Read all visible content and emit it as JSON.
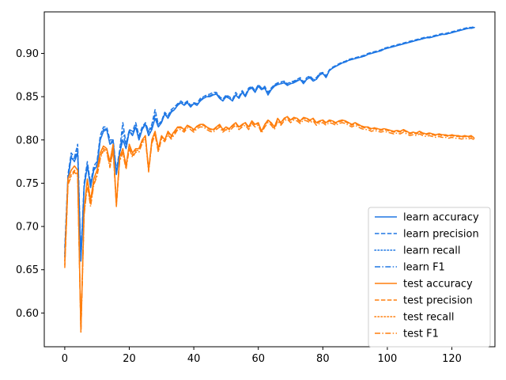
{
  "chart_data": {
    "type": "line",
    "title": "",
    "xlabel": "",
    "ylabel": "",
    "xlim": [
      -6.35,
      133.35
    ],
    "ylim": [
      0.561,
      0.948
    ],
    "xticks": [
      0,
      20,
      40,
      60,
      80,
      100,
      120
    ],
    "yticks": [
      0.6,
      0.65,
      0.7,
      0.75,
      0.8,
      0.85,
      0.9
    ],
    "ytick_labels": [
      "0.60",
      "0.65",
      "0.70",
      "0.75",
      "0.80",
      "0.85",
      "0.90"
    ],
    "grid": false,
    "legend": {
      "position": "lower-right"
    },
    "colors": {
      "learn": "#1f77e4",
      "test": "#ff7f0e"
    },
    "x_step": 1,
    "series": [
      {
        "name": "learn accuracy",
        "color": "#1f77e4",
        "style": "solid",
        "values": [
          0.665,
          0.755,
          0.78,
          0.775,
          0.785,
          0.66,
          0.745,
          0.77,
          0.745,
          0.765,
          0.77,
          0.8,
          0.81,
          0.812,
          0.795,
          0.798,
          0.76,
          0.785,
          0.8,
          0.79,
          0.81,
          0.805,
          0.815,
          0.8,
          0.812,
          0.818,
          0.805,
          0.812,
          0.825,
          0.815,
          0.82,
          0.83,
          0.825,
          0.832,
          0.835,
          0.84,
          0.843,
          0.84,
          0.843,
          0.838,
          0.842,
          0.84,
          0.845,
          0.848,
          0.85,
          0.85,
          0.852,
          0.853,
          0.848,
          0.845,
          0.85,
          0.848,
          0.845,
          0.852,
          0.848,
          0.855,
          0.85,
          0.858,
          0.86,
          0.855,
          0.862,
          0.858,
          0.86,
          0.852,
          0.858,
          0.862,
          0.864,
          0.865,
          0.866,
          0.863,
          0.865,
          0.866,
          0.868,
          0.87,
          0.865,
          0.87,
          0.872,
          0.868,
          0.87,
          0.875,
          0.877,
          0.872,
          0.88,
          0.883,
          0.885,
          0.887,
          0.889,
          0.89,
          0.892,
          0.893,
          0.894,
          0.895,
          0.896,
          0.897,
          0.899,
          0.9,
          0.901,
          0.902,
          0.903,
          0.905,
          0.906,
          0.907,
          0.908,
          0.909,
          0.91,
          0.911,
          0.912,
          0.913,
          0.914,
          0.915,
          0.916,
          0.917,
          0.918,
          0.918,
          0.919,
          0.92,
          0.921,
          0.922,
          0.922,
          0.923,
          0.924,
          0.925,
          0.926,
          0.927,
          0.928,
          0.929,
          0.929,
          0.93
        ]
      },
      {
        "name": "learn precision",
        "color": "#1f77e4",
        "style": "dashed",
        "values": [
          0.675,
          0.76,
          0.785,
          0.78,
          0.795,
          0.665,
          0.75,
          0.775,
          0.75,
          0.77,
          0.775,
          0.805,
          0.815,
          0.815,
          0.8,
          0.8,
          0.765,
          0.788,
          0.82,
          0.795,
          0.812,
          0.81,
          0.82,
          0.805,
          0.815,
          0.82,
          0.81,
          0.818,
          0.835,
          0.818,
          0.822,
          0.832,
          0.828,
          0.835,
          0.838,
          0.842,
          0.845,
          0.842,
          0.845,
          0.84,
          0.843,
          0.842,
          0.848,
          0.85,
          0.852,
          0.853,
          0.855,
          0.855,
          0.85,
          0.847,
          0.852,
          0.85,
          0.847,
          0.855,
          0.85,
          0.857,
          0.852,
          0.86,
          0.862,
          0.857,
          0.864,
          0.86,
          0.862,
          0.855,
          0.86,
          0.864,
          0.866,
          0.867,
          0.868,
          0.865,
          0.867,
          0.868,
          0.87,
          0.872,
          0.867,
          0.872,
          0.874,
          0.87,
          0.872,
          0.877,
          0.878,
          0.874,
          0.881,
          0.884,
          0.886,
          0.888,
          0.89,
          0.891,
          0.893,
          0.894,
          0.895,
          0.896,
          0.897,
          0.898,
          0.9,
          0.901,
          0.902,
          0.903,
          0.904,
          0.906,
          0.907,
          0.908,
          0.909,
          0.91,
          0.911,
          0.912,
          0.913,
          0.914,
          0.915,
          0.916,
          0.917,
          0.918,
          0.919,
          0.919,
          0.92,
          0.921,
          0.922,
          0.923,
          0.923,
          0.924,
          0.925,
          0.926,
          0.927,
          0.928,
          0.929,
          0.93,
          0.93,
          0.931
        ]
      },
      {
        "name": "learn recall",
        "color": "#1f77e4",
        "style": "dotted",
        "values": [
          0.665,
          0.755,
          0.78,
          0.775,
          0.785,
          0.66,
          0.745,
          0.77,
          0.745,
          0.765,
          0.77,
          0.8,
          0.81,
          0.812,
          0.795,
          0.798,
          0.76,
          0.785,
          0.8,
          0.79,
          0.81,
          0.805,
          0.815,
          0.8,
          0.812,
          0.818,
          0.805,
          0.812,
          0.825,
          0.815,
          0.82,
          0.83,
          0.825,
          0.832,
          0.835,
          0.84,
          0.843,
          0.84,
          0.843,
          0.838,
          0.842,
          0.84,
          0.845,
          0.848,
          0.85,
          0.85,
          0.852,
          0.853,
          0.848,
          0.845,
          0.85,
          0.848,
          0.845,
          0.852,
          0.848,
          0.855,
          0.85,
          0.858,
          0.86,
          0.855,
          0.862,
          0.858,
          0.86,
          0.852,
          0.858,
          0.862,
          0.864,
          0.865,
          0.866,
          0.863,
          0.865,
          0.866,
          0.868,
          0.87,
          0.865,
          0.87,
          0.872,
          0.868,
          0.87,
          0.875,
          0.877,
          0.872,
          0.88,
          0.883,
          0.885,
          0.887,
          0.889,
          0.89,
          0.892,
          0.893,
          0.894,
          0.895,
          0.896,
          0.897,
          0.899,
          0.9,
          0.901,
          0.902,
          0.903,
          0.905,
          0.906,
          0.907,
          0.908,
          0.909,
          0.91,
          0.911,
          0.912,
          0.913,
          0.914,
          0.915,
          0.916,
          0.917,
          0.918,
          0.918,
          0.919,
          0.92,
          0.921,
          0.922,
          0.922,
          0.923,
          0.924,
          0.925,
          0.926,
          0.927,
          0.928,
          0.929,
          0.929,
          0.93
        ]
      },
      {
        "name": "learn F1",
        "color": "#1f77e4",
        "style": "dashdot",
        "values": [
          0.668,
          0.757,
          0.782,
          0.777,
          0.79,
          0.662,
          0.747,
          0.772,
          0.747,
          0.767,
          0.772,
          0.802,
          0.812,
          0.813,
          0.797,
          0.799,
          0.762,
          0.786,
          0.81,
          0.792,
          0.811,
          0.807,
          0.817,
          0.802,
          0.813,
          0.819,
          0.807,
          0.815,
          0.83,
          0.816,
          0.821,
          0.831,
          0.826,
          0.833,
          0.836,
          0.841,
          0.844,
          0.841,
          0.844,
          0.839,
          0.842,
          0.841,
          0.846,
          0.849,
          0.851,
          0.851,
          0.853,
          0.854,
          0.849,
          0.846,
          0.851,
          0.849,
          0.846,
          0.853,
          0.849,
          0.856,
          0.851,
          0.859,
          0.861,
          0.856,
          0.863,
          0.859,
          0.861,
          0.853,
          0.859,
          0.863,
          0.865,
          0.866,
          0.867,
          0.864,
          0.866,
          0.867,
          0.869,
          0.871,
          0.866,
          0.871,
          0.873,
          0.869,
          0.871,
          0.876,
          0.877,
          0.873,
          0.88,
          0.883,
          0.885,
          0.887,
          0.889,
          0.89,
          0.892,
          0.893,
          0.894,
          0.895,
          0.896,
          0.897,
          0.899,
          0.9,
          0.901,
          0.902,
          0.903,
          0.905,
          0.906,
          0.907,
          0.908,
          0.909,
          0.91,
          0.911,
          0.912,
          0.913,
          0.914,
          0.915,
          0.916,
          0.917,
          0.918,
          0.918,
          0.919,
          0.92,
          0.921,
          0.922,
          0.922,
          0.923,
          0.924,
          0.925,
          0.926,
          0.927,
          0.928,
          0.929,
          0.929,
          0.93
        ]
      },
      {
        "name": "test accuracy",
        "color": "#ff7f0e",
        "style": "solid",
        "values": [
          0.66,
          0.755,
          0.765,
          0.77,
          0.765,
          0.58,
          0.72,
          0.755,
          0.73,
          0.755,
          0.765,
          0.785,
          0.793,
          0.79,
          0.775,
          0.795,
          0.725,
          0.78,
          0.79,
          0.77,
          0.795,
          0.785,
          0.79,
          0.79,
          0.8,
          0.805,
          0.765,
          0.8,
          0.81,
          0.79,
          0.805,
          0.8,
          0.81,
          0.805,
          0.81,
          0.815,
          0.815,
          0.812,
          0.817,
          0.815,
          0.812,
          0.816,
          0.818,
          0.818,
          0.815,
          0.813,
          0.812,
          0.815,
          0.818,
          0.812,
          0.815,
          0.813,
          0.817,
          0.82,
          0.815,
          0.818,
          0.82,
          0.815,
          0.822,
          0.818,
          0.82,
          0.81,
          0.818,
          0.823,
          0.82,
          0.815,
          0.825,
          0.82,
          0.825,
          0.827,
          0.823,
          0.826,
          0.825,
          0.822,
          0.826,
          0.825,
          0.823,
          0.825,
          0.82,
          0.822,
          0.823,
          0.82,
          0.823,
          0.822,
          0.82,
          0.822,
          0.823,
          0.822,
          0.82,
          0.818,
          0.82,
          0.818,
          0.816,
          0.815,
          0.815,
          0.813,
          0.814,
          0.813,
          0.812,
          0.813,
          0.812,
          0.811,
          0.81,
          0.811,
          0.81,
          0.812,
          0.81,
          0.808,
          0.809,
          0.808,
          0.81,
          0.808,
          0.807,
          0.808,
          0.807,
          0.806,
          0.807,
          0.806,
          0.806,
          0.805,
          0.806,
          0.805,
          0.805,
          0.804,
          0.805,
          0.804,
          0.805,
          0.802
        ]
      },
      {
        "name": "test precision",
        "color": "#ff7f0e",
        "style": "dashed",
        "values": [
          0.655,
          0.75,
          0.76,
          0.765,
          0.76,
          0.578,
          0.715,
          0.75,
          0.725,
          0.75,
          0.76,
          0.78,
          0.79,
          0.788,
          0.77,
          0.79,
          0.725,
          0.777,
          0.787,
          0.768,
          0.792,
          0.782,
          0.788,
          0.788,
          0.798,
          0.803,
          0.765,
          0.798,
          0.808,
          0.788,
          0.803,
          0.8,
          0.808,
          0.803,
          0.808,
          0.814,
          0.814,
          0.811,
          0.816,
          0.814,
          0.811,
          0.815,
          0.817,
          0.817,
          0.814,
          0.812,
          0.811,
          0.814,
          0.817,
          0.811,
          0.814,
          0.812,
          0.816,
          0.819,
          0.814,
          0.817,
          0.819,
          0.814,
          0.821,
          0.817,
          0.819,
          0.81,
          0.817,
          0.822,
          0.819,
          0.814,
          0.824,
          0.819,
          0.824,
          0.826,
          0.822,
          0.825,
          0.824,
          0.821,
          0.825,
          0.824,
          0.822,
          0.824,
          0.819,
          0.821,
          0.822,
          0.819,
          0.822,
          0.821,
          0.819,
          0.821,
          0.822,
          0.821,
          0.819,
          0.817,
          0.819,
          0.817,
          0.815,
          0.814,
          0.814,
          0.812,
          0.813,
          0.812,
          0.811,
          0.812,
          0.811,
          0.81,
          0.809,
          0.81,
          0.809,
          0.811,
          0.809,
          0.807,
          0.808,
          0.807,
          0.809,
          0.807,
          0.806,
          0.807,
          0.806,
          0.805,
          0.806,
          0.805,
          0.805,
          0.804,
          0.805,
          0.804,
          0.804,
          0.803,
          0.804,
          0.803,
          0.804,
          0.801
        ]
      },
      {
        "name": "test recall",
        "color": "#ff7f0e",
        "style": "dotted",
        "values": [
          0.66,
          0.755,
          0.765,
          0.77,
          0.765,
          0.58,
          0.72,
          0.755,
          0.73,
          0.755,
          0.765,
          0.785,
          0.793,
          0.79,
          0.775,
          0.795,
          0.725,
          0.78,
          0.79,
          0.77,
          0.795,
          0.785,
          0.79,
          0.79,
          0.8,
          0.805,
          0.765,
          0.8,
          0.81,
          0.79,
          0.805,
          0.8,
          0.81,
          0.805,
          0.81,
          0.815,
          0.815,
          0.812,
          0.817,
          0.815,
          0.812,
          0.816,
          0.818,
          0.818,
          0.815,
          0.813,
          0.812,
          0.815,
          0.818,
          0.812,
          0.815,
          0.813,
          0.817,
          0.82,
          0.815,
          0.818,
          0.82,
          0.815,
          0.822,
          0.818,
          0.82,
          0.81,
          0.818,
          0.823,
          0.82,
          0.815,
          0.825,
          0.82,
          0.825,
          0.827,
          0.823,
          0.826,
          0.825,
          0.822,
          0.826,
          0.825,
          0.823,
          0.825,
          0.82,
          0.822,
          0.823,
          0.82,
          0.823,
          0.822,
          0.82,
          0.822,
          0.823,
          0.822,
          0.82,
          0.818,
          0.82,
          0.818,
          0.816,
          0.815,
          0.815,
          0.813,
          0.814,
          0.813,
          0.812,
          0.813,
          0.812,
          0.811,
          0.81,
          0.811,
          0.81,
          0.812,
          0.81,
          0.808,
          0.809,
          0.808,
          0.81,
          0.808,
          0.807,
          0.808,
          0.807,
          0.806,
          0.807,
          0.806,
          0.806,
          0.805,
          0.806,
          0.805,
          0.805,
          0.804,
          0.805,
          0.804,
          0.805,
          0.802
        ]
      },
      {
        "name": "test F1",
        "color": "#ff7f0e",
        "style": "dashdot",
        "values": [
          0.652,
          0.748,
          0.758,
          0.763,
          0.758,
          0.577,
          0.713,
          0.748,
          0.723,
          0.748,
          0.758,
          0.778,
          0.788,
          0.786,
          0.768,
          0.788,
          0.723,
          0.775,
          0.785,
          0.766,
          0.79,
          0.78,
          0.786,
          0.786,
          0.796,
          0.801,
          0.763,
          0.796,
          0.806,
          0.786,
          0.801,
          0.798,
          0.806,
          0.801,
          0.806,
          0.812,
          0.812,
          0.809,
          0.814,
          0.812,
          0.809,
          0.813,
          0.815,
          0.815,
          0.812,
          0.81,
          0.809,
          0.812,
          0.815,
          0.809,
          0.812,
          0.81,
          0.814,
          0.817,
          0.812,
          0.815,
          0.817,
          0.812,
          0.819,
          0.815,
          0.817,
          0.808,
          0.815,
          0.82,
          0.817,
          0.812,
          0.822,
          0.817,
          0.822,
          0.824,
          0.82,
          0.823,
          0.822,
          0.819,
          0.823,
          0.822,
          0.82,
          0.822,
          0.817,
          0.819,
          0.82,
          0.817,
          0.82,
          0.819,
          0.817,
          0.819,
          0.82,
          0.819,
          0.817,
          0.815,
          0.817,
          0.815,
          0.813,
          0.812,
          0.812,
          0.81,
          0.811,
          0.81,
          0.809,
          0.81,
          0.809,
          0.808,
          0.807,
          0.808,
          0.807,
          0.809,
          0.807,
          0.805,
          0.806,
          0.805,
          0.807,
          0.805,
          0.804,
          0.805,
          0.804,
          0.803,
          0.804,
          0.803,
          0.803,
          0.802,
          0.803,
          0.802,
          0.802,
          0.801,
          0.802,
          0.801,
          0.802,
          0.8
        ]
      }
    ]
  }
}
